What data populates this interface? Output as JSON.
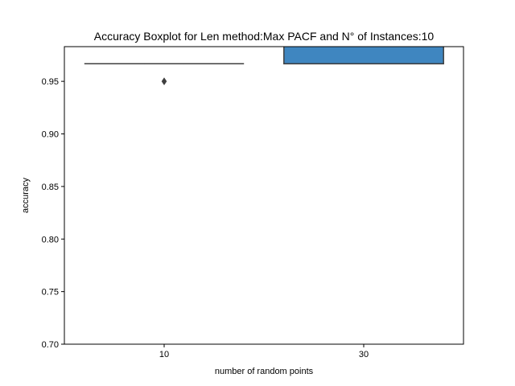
{
  "chart_data": {
    "type": "box",
    "title": "Accuracy Boxplot for Len method:Max PACF and N° of Instances:10",
    "xlabel": "number of random points",
    "ylabel": "accuracy",
    "categories": [
      "10",
      "30"
    ],
    "ylim": [
      0.7,
      0.983
    ],
    "yticks": [
      0.7,
      0.75,
      0.8,
      0.85,
      0.9,
      0.95
    ],
    "ytick_labels": [
      "0.70",
      "0.75",
      "0.80",
      "0.85",
      "0.90",
      "0.95"
    ],
    "grid": false,
    "boxes": [
      {
        "category": "10",
        "q1": 0.9667,
        "median": 0.9667,
        "q3": 0.9667,
        "whisker_low": 0.9667,
        "whisker_high": 0.9667,
        "outliers": [
          0.95
        ],
        "color": "#3a74b0"
      },
      {
        "category": "30",
        "q1": 0.9667,
        "median": 0.9667,
        "q3": 1.0,
        "whisker_low": 0.9667,
        "whisker_high": 1.0,
        "outliers": [],
        "color": "#3f86c0"
      }
    ],
    "colors": {
      "line": "#3f3f3f",
      "axes": "#000000"
    }
  }
}
